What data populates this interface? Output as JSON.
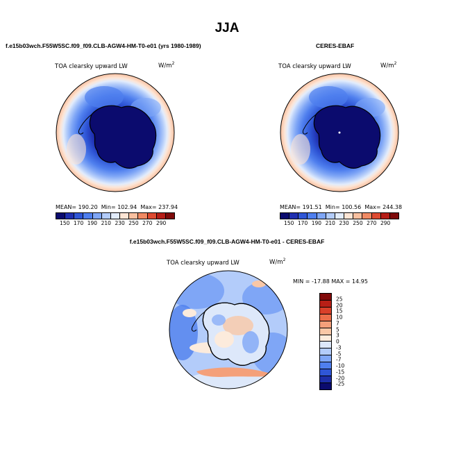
{
  "page": {
    "title": "JJA",
    "left_subtitle": "f.e15b03wch.F55W5SC.f09_f09.CLB-AGW4-HM-T0-e01 (yrs 1980-1989)",
    "right_subtitle": "CERES-EBAF",
    "diff_subtitle": "f.e15b03wch.F55W5SC.f09_f09.CLB-AGW4-HM-T0-e01 - CERES-EBAF"
  },
  "panels": {
    "model": {
      "variable": "TOA clearsky upward LW",
      "units": "W/m",
      "units_exp": "2",
      "mean_label": "MEAN=",
      "mean": "190.20",
      "min_label": "Min=",
      "min": "102.94",
      "max_label": "Max=",
      "max": "237.94"
    },
    "obs": {
      "variable": "TOA clearsky upward LW",
      "units": "W/m",
      "units_exp": "2",
      "mean_label": "MEAN=",
      "mean": "191.51",
      "min_label": "Min=",
      "min": "100.56",
      "max_label": "Max=",
      "max": "244.38"
    },
    "diff": {
      "variable": "TOA clearsky upward LW",
      "units": "W/m",
      "units_exp": "2",
      "min_label": "MIN =",
      "min": "-17.88",
      "max_label": "MAX =",
      "max": "14.95"
    }
  },
  "colors": {
    "abs_scale": [
      "#0b0b6e",
      "#1f2fb0",
      "#2f56d6",
      "#4f7fee",
      "#7fa6f6",
      "#b3ccfa",
      "#e2ecfc",
      "#fde5d5",
      "#f9c0a0",
      "#f08a64",
      "#dd4a31",
      "#b51d17",
      "#7e0a0a"
    ],
    "diff_scale": [
      "#0b0b6e",
      "#1d2ea8",
      "#2f56d6",
      "#4f7fee",
      "#7fa6f6",
      "#b3ccfa",
      "#dde8fa",
      "#fcebdc",
      "#f9c7a6",
      "#f4a07a",
      "#ec6e4a",
      "#d9402a",
      "#b81f16",
      "#820a0a"
    ],
    "coastline": "#000000"
  },
  "colorbars": {
    "abs_ticks": [
      "150",
      "170",
      "190",
      "210",
      "230",
      "250",
      "270",
      "290"
    ],
    "diff_ticks": [
      "25",
      "20",
      "15",
      "10",
      "7",
      "5",
      "3",
      "0",
      "-3",
      "-5",
      "-7",
      "-10",
      "-15",
      "-20",
      "-25"
    ]
  }
}
